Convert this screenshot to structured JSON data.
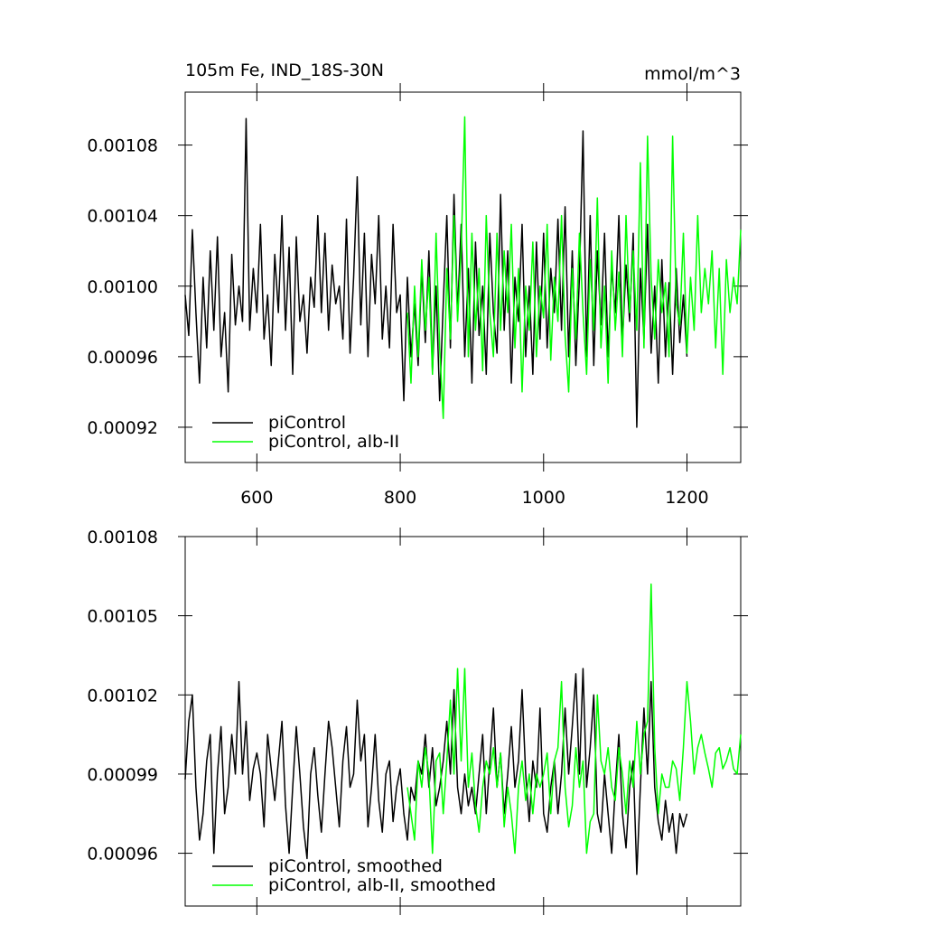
{
  "chart_data": [
    {
      "type": "line",
      "title": "105m Fe, IND_18S-30N",
      "units_label": "mmol/m^3",
      "xlim": [
        500,
        1275
      ],
      "xticks": [
        600,
        800,
        1000,
        1200
      ],
      "ylim": [
        0.0009,
        0.00111
      ],
      "yticks": [
        0.00092,
        0.00096,
        {
          "value": 0.001,
          "label": "0.00100"
        },
        0.00104,
        0.00108
      ],
      "legend": "lower left",
      "x": [
        500,
        505,
        510,
        515,
        520,
        525,
        530,
        535,
        540,
        545,
        550,
        555,
        560,
        565,
        570,
        575,
        580,
        585,
        590,
        595,
        600,
        605,
        610,
        615,
        620,
        625,
        630,
        635,
        640,
        645,
        650,
        655,
        660,
        665,
        670,
        675,
        680,
        685,
        690,
        695,
        700,
        705,
        710,
        715,
        720,
        725,
        730,
        735,
        740,
        745,
        750,
        755,
        760,
        765,
        770,
        775,
        780,
        785,
        790,
        795,
        800,
        805,
        810,
        815,
        820,
        825,
        830,
        835,
        840,
        845,
        850,
        855,
        860,
        865,
        870,
        875,
        880,
        885,
        890,
        895,
        900,
        905,
        910,
        915,
        920,
        925,
        930,
        935,
        940,
        945,
        950,
        955,
        960,
        965,
        970,
        975,
        980,
        985,
        990,
        995,
        1000,
        1005,
        1010,
        1015,
        1020,
        1025,
        1030,
        1035,
        1040,
        1045,
        1050,
        1055,
        1060,
        1065,
        1070,
        1075,
        1080,
        1085,
        1090,
        1095,
        1100,
        1105,
        1110,
        1115,
        1120,
        1125,
        1130,
        1135,
        1140,
        1145,
        1150,
        1155,
        1160,
        1165,
        1170,
        1175,
        1180,
        1185,
        1190,
        1195,
        1200,
        1205,
        1210,
        1215,
        1220,
        1225,
        1230,
        1235,
        1240,
        1245,
        1250,
        1255,
        1260,
        1265,
        1270,
        1275
      ],
      "series": [
        {
          "name": "piControl",
          "color": "#000000",
          "values": [
            0.000995,
            0.000972,
            0.001032,
            0.000985,
            0.000945,
            0.001005,
            0.000965,
            0.00102,
            0.000975,
            0.001028,
            0.00096,
            0.000985,
            0.00094,
            0.001018,
            0.000978,
            0.001,
            0.00098,
            0.001095,
            0.000975,
            0.00101,
            0.000985,
            0.001035,
            0.00097,
            0.000995,
            0.000955,
            0.001018,
            0.000985,
            0.00104,
            0.000975,
            0.001022,
            0.00095,
            0.001028,
            0.00098,
            0.000995,
            0.000962,
            0.001005,
            0.000988,
            0.00104,
            0.000985,
            0.00103,
            0.000975,
            0.001012,
            0.00099,
            0.001,
            0.00097,
            0.001038,
            0.000962,
            0.001005,
            0.001062,
            0.000978,
            0.00103,
            0.00096,
            0.001018,
            0.00099,
            0.00104,
            0.00097,
            0.001,
            0.000965,
            0.001035,
            0.000985,
            0.000995,
            0.000935,
            0.001005,
            0.00096,
            0.00099,
            0.000955,
            0.00101,
            0.000968,
            0.00102,
            0.000952,
            0.001,
            0.000935,
            0.00099,
            0.00104,
            0.000965,
            0.001052,
            0.000985,
            0.001035,
            0.00096,
            0.00101,
            0.000945,
            0.001025,
            0.000972,
            0.001,
            0.00095,
            0.00103,
            0.000985,
            0.000962,
            0.001052,
            0.000975,
            0.00102,
            0.000945,
            0.001005,
            0.00098,
            0.001035,
            0.00096,
            0.001,
            0.00095,
            0.001025,
            0.00097,
            0.00103,
            0.000965,
            0.00101,
            0.000985,
            0.001038,
            0.000975,
            0.001045,
            0.00096,
            0.00102,
            0.000955,
            0.001005,
            0.001088,
            0.00096,
            0.00104,
            0.000955,
            0.00102,
            0.000978,
            0.00103,
            0.00096,
            0.00101,
            0.000985,
            0.00104,
            0.000968,
            0.001012,
            0.00098,
            0.00103,
            0.00092,
            0.00101,
            0.00097,
            0.001035,
            0.000962,
            0.001,
            0.000945,
            0.001015,
            0.00096,
            0.001002,
            0.00095,
            0.00101,
            0.000968,
            0.000995,
            0.00096,
            null,
            null,
            null,
            null,
            null,
            null,
            null,
            null,
            null,
            null,
            null,
            null,
            null,
            null,
            null
          ]
        },
        {
          "name": "piControl, alb-II",
          "color": "#00ff00",
          "values": [
            null,
            null,
            null,
            null,
            null,
            null,
            null,
            null,
            null,
            null,
            null,
            null,
            null,
            null,
            null,
            null,
            null,
            null,
            null,
            null,
            null,
            null,
            null,
            null,
            null,
            null,
            null,
            null,
            null,
            null,
            null,
            null,
            null,
            null,
            null,
            null,
            null,
            null,
            null,
            null,
            null,
            null,
            null,
            null,
            null,
            null,
            null,
            null,
            null,
            null,
            null,
            null,
            null,
            null,
            null,
            null,
            null,
            null,
            null,
            null,
            null,
            null,
            0.000985,
            0.000945,
            0.001,
            0.00096,
            0.001015,
            0.000975,
            0.001005,
            0.00095,
            0.00103,
            0.000965,
            0.000925,
            0.00101,
            0.00097,
            0.00104,
            0.00098,
            0.00102,
            0.001096,
            0.00096,
            0.00103,
            0.000975,
            0.00101,
            0.000952,
            0.00104,
            0.000985,
            0.00096,
            0.00103,
            0.000975,
            0.00102,
            0.000985,
            0.001035,
            0.000965,
            0.00101,
            0.00094,
            0.001,
            0.000975,
            0.001025,
            0.00096,
            0.001,
            0.000982,
            0.001035,
            0.000958,
            0.001005,
            0.00098,
            0.00104,
            0.000972,
            0.00094,
            0.00101,
            0.00097,
            0.00103,
            0.000985,
            0.00095,
            0.001015,
            0.000975,
            0.00105,
            0.000965,
            0.001,
            0.000945,
            0.00102,
            0.000975,
            0.001008,
            0.00096,
            0.00104,
            0.000985,
            0.00102,
            0.000975,
            0.00107,
            0.000965,
            0.001085,
            0.001005,
            0.00097,
            0.001015,
            0.000985,
            0.001002,
            0.00096,
            0.001085,
            0.00099,
            0.000978,
            0.00103,
            0.000962,
            0.001005,
            0.000975,
            0.00104,
            0.000985,
            0.00101,
            0.00099,
            0.00102,
            0.000965,
            0.00101,
            0.00095,
            0.001015,
            0.000985,
            0.001005,
            0.00099,
            0.001032
          ]
        }
      ]
    },
    {
      "type": "line",
      "xlim": [
        500,
        1275
      ],
      "ylim": [
        0.00094,
        0.00108
      ],
      "yticks": [
        0.00096,
        0.00099,
        0.00102,
        0.00105,
        0.00108
      ],
      "legend": "lower left",
      "x": [
        500,
        505,
        510,
        515,
        520,
        525,
        530,
        535,
        540,
        545,
        550,
        555,
        560,
        565,
        570,
        575,
        580,
        585,
        590,
        595,
        600,
        605,
        610,
        615,
        620,
        625,
        630,
        635,
        640,
        645,
        650,
        655,
        660,
        665,
        670,
        675,
        680,
        685,
        690,
        695,
        700,
        705,
        710,
        715,
        720,
        725,
        730,
        735,
        740,
        745,
        750,
        755,
        760,
        765,
        770,
        775,
        780,
        785,
        790,
        795,
        800,
        805,
        810,
        815,
        820,
        825,
        830,
        835,
        840,
        845,
        850,
        855,
        860,
        865,
        870,
        875,
        880,
        885,
        890,
        895,
        900,
        905,
        910,
        915,
        920,
        925,
        930,
        935,
        940,
        945,
        950,
        955,
        960,
        965,
        970,
        975,
        980,
        985,
        990,
        995,
        1000,
        1005,
        1010,
        1015,
        1020,
        1025,
        1030,
        1035,
        1040,
        1045,
        1050,
        1055,
        1060,
        1065,
        1070,
        1075,
        1080,
        1085,
        1090,
        1095,
        1100,
        1105,
        1110,
        1115,
        1120,
        1125,
        1130,
        1135,
        1140,
        1145,
        1150,
        1155,
        1160,
        1165,
        1170,
        1175,
        1180,
        1185,
        1190,
        1195,
        1200,
        1205,
        1210,
        1215,
        1220,
        1225,
        1230,
        1235,
        1240,
        1245,
        1250,
        1255,
        1260,
        1265,
        1270,
        1275
      ],
      "series": [
        {
          "name": "piControl, smoothed",
          "color": "#000000",
          "values": [
            0.000988,
            0.00101,
            0.00102,
            0.000985,
            0.000965,
            0.000975,
            0.000995,
            0.001005,
            0.00096,
            0.00099,
            0.001008,
            0.000975,
            0.000985,
            0.001005,
            0.00099,
            0.001025,
            0.00099,
            0.00101,
            0.00098,
            0.000992,
            0.000998,
            0.00099,
            0.00097,
            0.001005,
            0.000992,
            0.00098,
            0.000995,
            0.00101,
            0.000978,
            0.00096,
            0.000985,
            0.001008,
            0.00099,
            0.00097,
            0.000958,
            0.00099,
            0.001,
            0.000982,
            0.000968,
            0.00099,
            0.00101,
            0.001,
            0.000985,
            0.00097,
            0.000995,
            0.001008,
            0.000985,
            0.00099,
            0.001018,
            0.000995,
            0.001005,
            0.00097,
            0.000985,
            0.001005,
            0.00098,
            0.000968,
            0.00099,
            0.000995,
            0.000972,
            0.000985,
            0.000992,
            0.000975,
            0.000965,
            0.000985,
            0.00098,
            0.000995,
            0.00099,
            0.001005,
            0.000985,
            0.001,
            0.000978,
            0.000985,
            0.000995,
            0.00101,
            0.00099,
            0.001022,
            0.000985,
            0.000975,
            0.00099,
            0.000978,
            0.000985,
            0.000975,
            0.00099,
            0.001005,
            0.000975,
            0.000995,
            0.001015,
            0.000985,
            0.000998,
            0.000975,
            0.00099,
            0.001008,
            0.000985,
            0.000995,
            0.001022,
            0.00099,
            0.000972,
            0.000995,
            0.000985,
            0.001015,
            0.000975,
            0.000968,
            0.000985,
            0.000995,
            0.000975,
            0.00099,
            0.001015,
            0.00099,
            0.001008,
            0.001028,
            0.00099,
            0.00103,
            0.000985,
            0.001,
            0.00102,
            0.000975,
            0.000968,
            0.00099,
            0.000975,
            0.00096,
            0.000985,
            0.001005,
            0.000975,
            0.000962,
            0.000985,
            0.000995,
            0.000952,
            0.000985,
            0.001015,
            0.00099,
            0.001025,
            0.000985,
            0.000972,
            0.000965,
            0.00098,
            0.000968,
            0.000975,
            0.00096,
            0.000975,
            0.00097,
            0.000975,
            null,
            null,
            null,
            null,
            null,
            null,
            null,
            null,
            null,
            null,
            null,
            null,
            null,
            null,
            null
          ]
        },
        {
          "name": "piControl, alb-II, smoothed",
          "color": "#00ff00",
          "values": [
            null,
            null,
            null,
            null,
            null,
            null,
            null,
            null,
            null,
            null,
            null,
            null,
            null,
            null,
            null,
            null,
            null,
            null,
            null,
            null,
            null,
            null,
            null,
            null,
            null,
            null,
            null,
            null,
            null,
            null,
            null,
            null,
            null,
            null,
            null,
            null,
            null,
            null,
            null,
            null,
            null,
            null,
            null,
            null,
            null,
            null,
            null,
            null,
            null,
            null,
            null,
            null,
            null,
            null,
            null,
            null,
            null,
            null,
            null,
            null,
            null,
            null,
            0.000985,
            0.000975,
            0.000965,
            0.000995,
            0.000985,
            0.001,
            0.00099,
            0.00096,
            0.000995,
            0.000998,
            0.000975,
            0.000995,
            0.001018,
            0.00099,
            0.00103,
            0.000995,
            0.00103,
            0.000985,
            0.000998,
            0.000978,
            0.000968,
            0.000985,
            0.000995,
            0.00099,
            0.001,
            0.000985,
            0.000998,
            0.00097,
            0.000985,
            0.000975,
            0.00096,
            0.000985,
            0.000995,
            0.00098,
            0.00099,
            0.000975,
            0.00099,
            0.000985,
            0.00099,
            0.000998,
            0.000975,
            0.000995,
            0.001,
            0.001025,
            0.000985,
            0.00097,
            0.000978,
            0.001,
            0.000985,
            0.000995,
            0.00096,
            0.000972,
            0.000975,
            0.00102,
            0.000995,
            0.00099,
            0.001,
            0.000985,
            0.00098,
            0.001,
            0.00099,
            0.000975,
            0.000995,
            0.000985,
            0.00101,
            0.00099,
            0.001005,
            0.00101,
            0.001062,
            0.001,
            0.000975,
            0.00099,
            0.000985,
            0.000985,
            0.000995,
            0.000992,
            0.00098,
            0.001,
            0.001025,
            0.00101,
            0.00099,
            0.001,
            0.001005,
            0.000998,
            0.000992,
            0.000985,
            0.000998,
            0.001,
            0.000992,
            0.000995,
            0.001,
            0.000992,
            0.00099,
            0.001005
          ]
        }
      ]
    }
  ]
}
